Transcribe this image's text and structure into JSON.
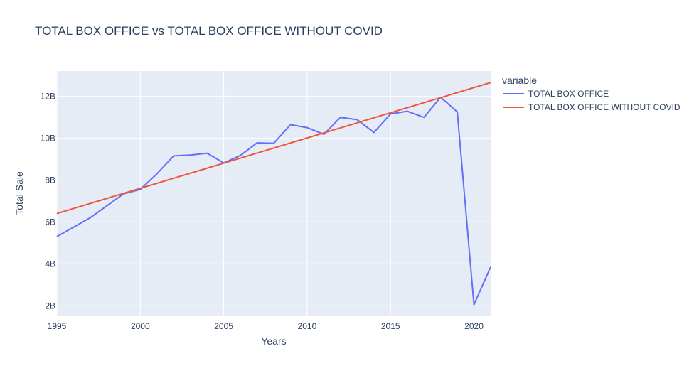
{
  "chart_data": {
    "type": "line",
    "title": "TOTAL BOX OFFICE vs TOTAL BOX OFFICE WITHOUT COVID",
    "xlabel": "Years",
    "ylabel": "Total Sale",
    "xlim": [
      1995,
      2021
    ],
    "ylim": [
      1500000000,
      13200000000
    ],
    "x_ticks": [
      1995,
      2000,
      2005,
      2010,
      2015,
      2020
    ],
    "x_tick_labels": [
      "1995",
      "2000",
      "2005",
      "2010",
      "2015",
      "2020"
    ],
    "y_ticks": [
      2000000000,
      4000000000,
      6000000000,
      8000000000,
      10000000000,
      12000000000
    ],
    "y_tick_labels": [
      "2B",
      "4B",
      "6B",
      "8B",
      "10B",
      "12B"
    ],
    "grid": true,
    "legend": {
      "title": "variable",
      "placement": "right"
    },
    "series": [
      {
        "name": "TOTAL BOX OFFICE",
        "color": "#636efa",
        "x": [
          1995,
          1996,
          1997,
          1998,
          1999,
          2000,
          2001,
          2002,
          2003,
          2004,
          2005,
          2006,
          2007,
          2008,
          2009,
          2010,
          2011,
          2012,
          2013,
          2014,
          2015,
          2016,
          2017,
          2018,
          2019,
          2020,
          2021
        ],
        "values": [
          5300000000,
          5750000000,
          6200000000,
          6770000000,
          7340000000,
          7550000000,
          8300000000,
          9150000000,
          9190000000,
          9280000000,
          8810000000,
          9170000000,
          9770000000,
          9750000000,
          10640000000,
          10500000000,
          10180000000,
          10990000000,
          10880000000,
          10270000000,
          11150000000,
          11280000000,
          10990000000,
          11950000000,
          11250000000,
          2050000000,
          3850000000
        ]
      },
      {
        "name": "TOTAL BOX OFFICE WITHOUT COVID",
        "color": "#ef553b",
        "x": [
          1995,
          2021
        ],
        "values": [
          6400000000,
          12650000000
        ]
      }
    ]
  }
}
